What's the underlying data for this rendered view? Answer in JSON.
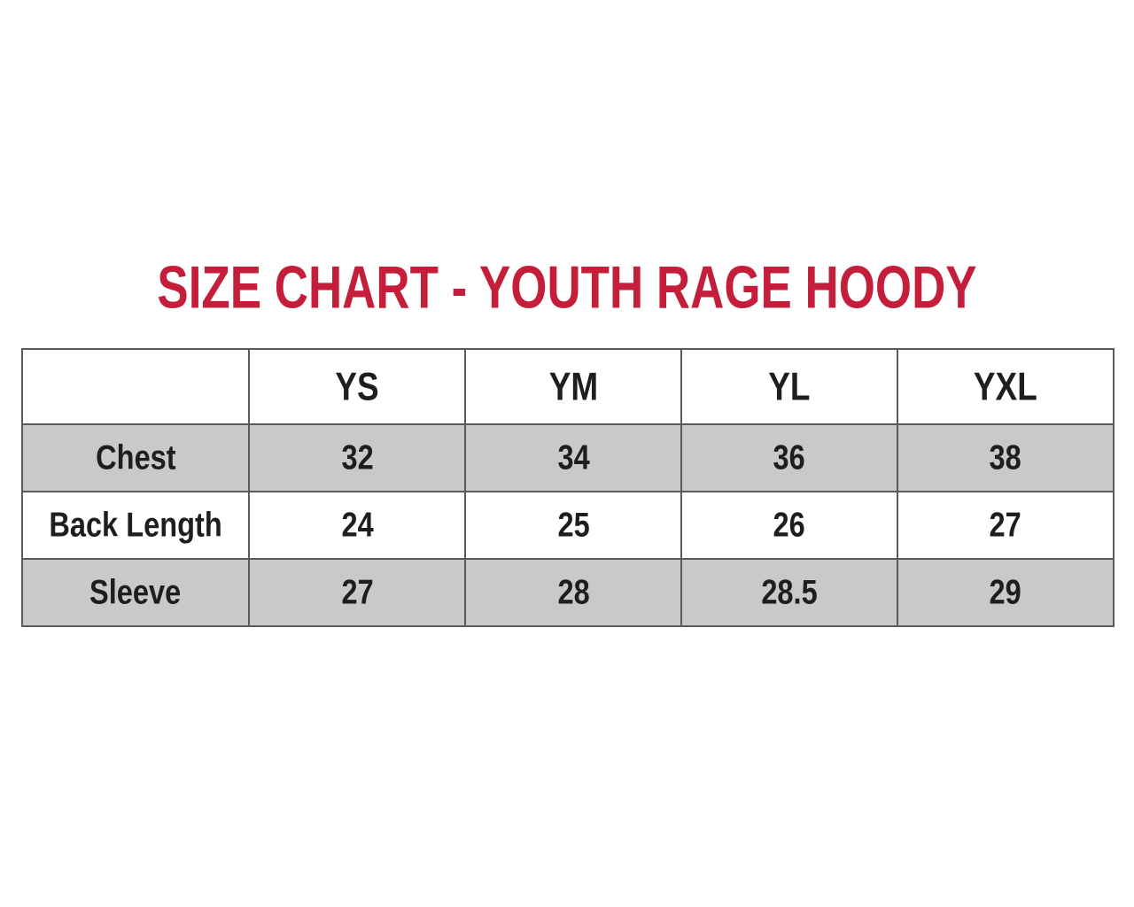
{
  "title": {
    "text": "SIZE CHART - YOUTH RAGE HOODY"
  },
  "colors": {
    "title_red": "#c41e3a",
    "row_shade": "#c9c9c9",
    "border": "#5b5b5b",
    "text": "#1e1e1e",
    "background": "#ffffff"
  },
  "chart_data": {
    "type": "table",
    "title": "SIZE CHART - YOUTH RAGE HOODY",
    "columns": [
      "",
      "YS",
      "YM",
      "YL",
      "YXL"
    ],
    "rows": [
      {
        "label": "Chest",
        "values": [
          "32",
          "34",
          "36",
          "38"
        ],
        "shaded": true
      },
      {
        "label": "Back Length",
        "values": [
          "24",
          "25",
          "26",
          "27"
        ],
        "shaded": false
      },
      {
        "label": "Sleeve",
        "values": [
          "27",
          "28",
          "28.5",
          "29"
        ],
        "shaded": true
      }
    ],
    "layout": {
      "header_background": "#ffffff",
      "shaded_row_background": "#c9c9c9",
      "grid": true
    }
  }
}
